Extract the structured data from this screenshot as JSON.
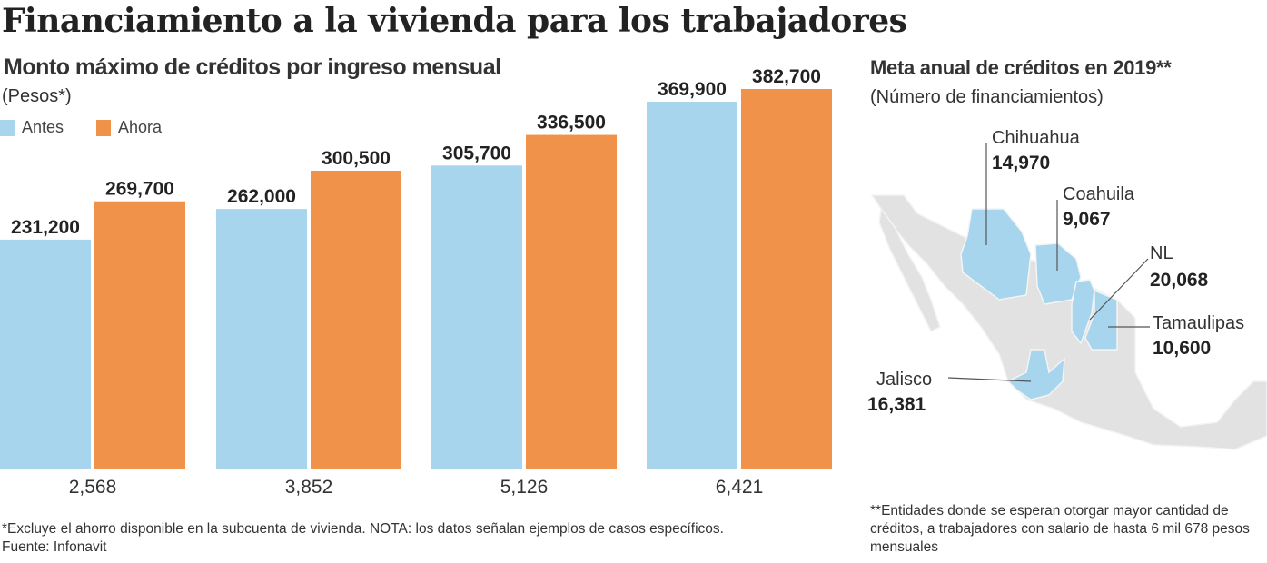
{
  "title": "Financiamiento a la vivienda para los trabajadores",
  "colors": {
    "antes": "#a7d5ed",
    "ahora": "#f0924a",
    "map_base": "#e2e2e2",
    "map_highlight": "#a7d5ed"
  },
  "chart_data": [
    {
      "type": "bar",
      "title": "Monto máximo de créditos por ingreso mensual",
      "subtitle": "(Pesos*)",
      "categories": [
        "2,568",
        "3,852",
        "5,126",
        "6,421"
      ],
      "series": [
        {
          "name": "Antes",
          "values": [
            231200,
            262000,
            305700,
            369900
          ],
          "labels": [
            "231,200",
            "262,000",
            "305,700",
            "369,900"
          ]
        },
        {
          "name": "Ahora",
          "values": [
            269700,
            300500,
            336500,
            382700
          ],
          "labels": [
            "269,700",
            "300,500",
            "336,500",
            "382,700"
          ]
        }
      ],
      "ylim": [
        0,
        382700
      ],
      "grid": false,
      "legend": "top-left"
    },
    {
      "type": "map",
      "title": "Meta anual de créditos en 2019**",
      "subtitle": "(Número de financiamientos)",
      "states": [
        {
          "name": "Chihuahua",
          "value": "14,970"
        },
        {
          "name": "Coahuila",
          "value": "9,067"
        },
        {
          "name": "NL",
          "value": "20,068"
        },
        {
          "name": "Tamaulipas",
          "value": "10,600"
        },
        {
          "name": "Jalisco",
          "value": "16,381"
        }
      ]
    }
  ],
  "notes": {
    "left": "*Excluye el ahorro disponible en la subcuenta de vivienda. NOTA: los datos señalan ejemplos de casos específicos. Fuente: Infonavit",
    "right": "**Entidades donde se esperan otorgar mayor cantidad de créditos, a trabajadores con salario de hasta 6 mil 678 pesos mensuales"
  }
}
